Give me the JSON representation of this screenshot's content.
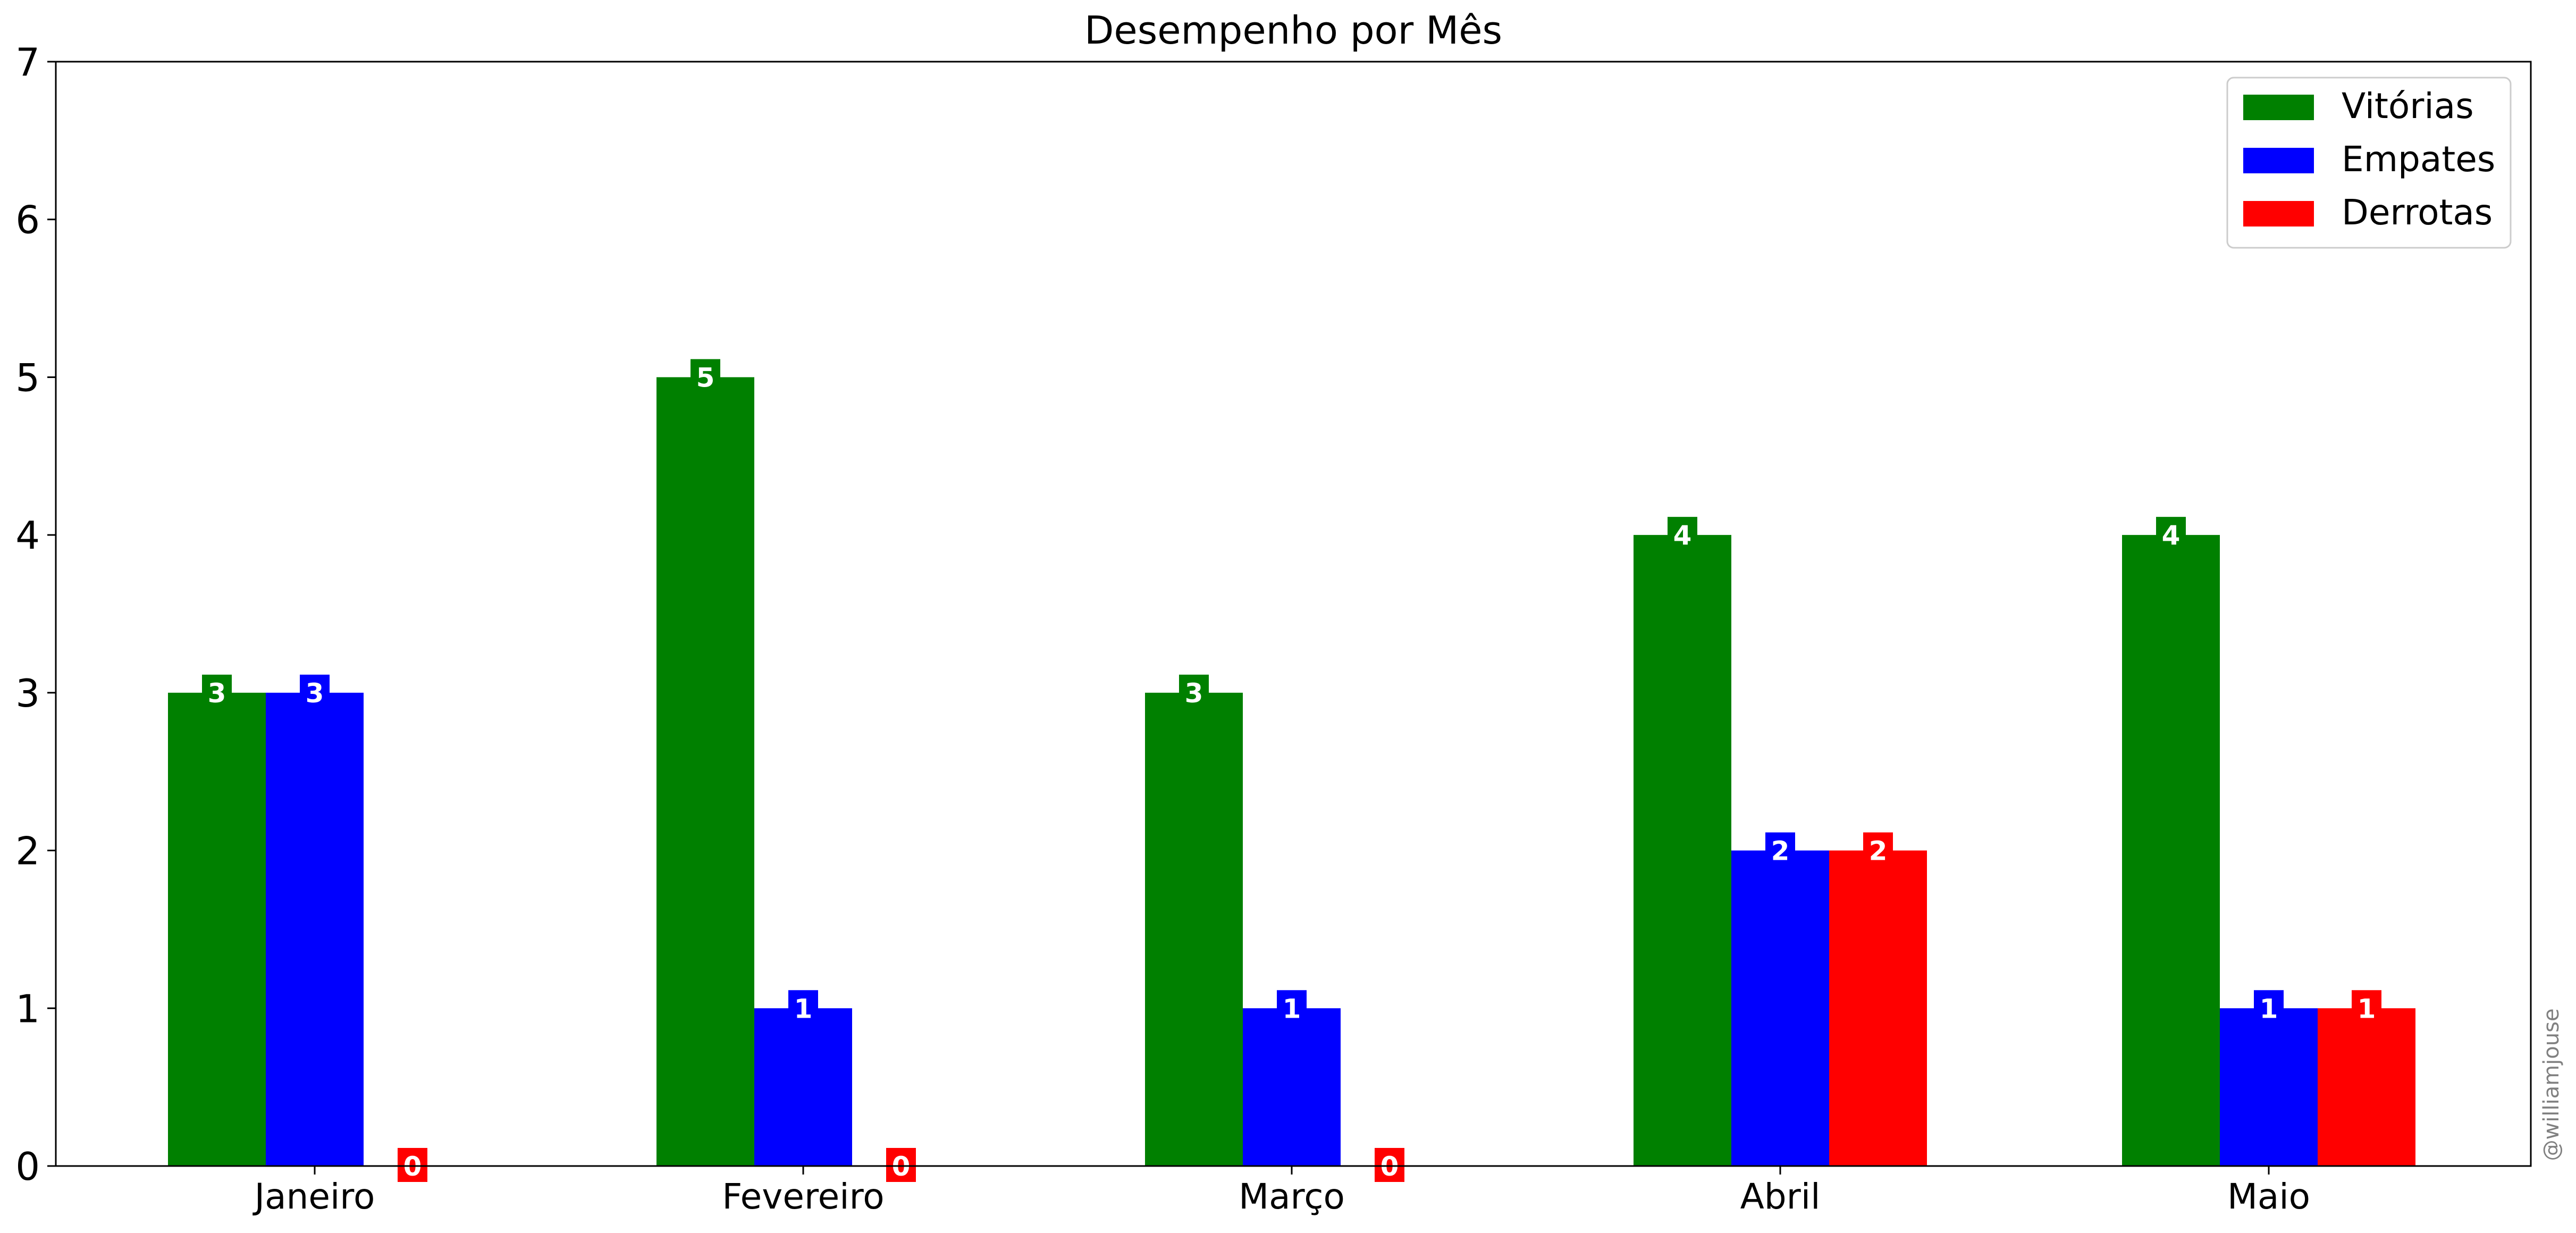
{
  "chart_data": {
    "type": "bar",
    "title": "Desempenho por Mês",
    "xlabel": "",
    "ylabel": "",
    "categories": [
      "Janeiro",
      "Fevereiro",
      "Março",
      "Abril",
      "Maio"
    ],
    "series": [
      {
        "name": "Vitórias",
        "color": "#008000",
        "values": [
          3,
          5,
          3,
          4,
          4
        ]
      },
      {
        "name": "Empates",
        "color": "#0000ff",
        "values": [
          3,
          1,
          1,
          2,
          1
        ]
      },
      {
        "name": "Derrotas",
        "color": "#ff0000",
        "values": [
          0,
          0,
          0,
          2,
          1
        ]
      }
    ],
    "ylim": [
      0,
      7
    ],
    "yticks": [
      0,
      1,
      2,
      3,
      4,
      5,
      6,
      7
    ],
    "grid": false,
    "legend": "top-right",
    "data_labels": true
  },
  "watermark": "@williamjouse"
}
